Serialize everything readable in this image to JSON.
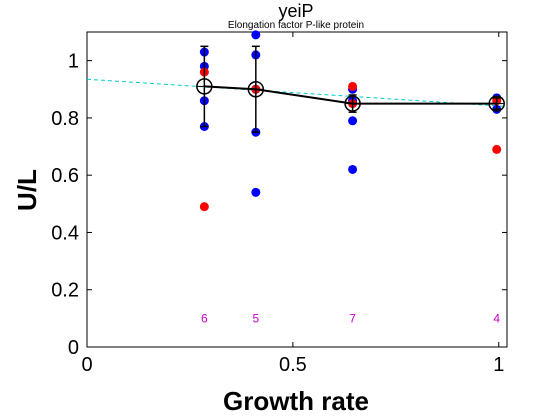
{
  "chart_data": {
    "type": "scatter",
    "title": "yeiP",
    "subtitle": "Elongation factor P-like protein",
    "xlabel": "Growth rate",
    "ylabel": "U/L",
    "xlim": [
      0,
      1.02
    ],
    "ylim": [
      0,
      1.1
    ],
    "xticks": [
      0,
      0.5,
      1
    ],
    "xtick_labels": [
      "0",
      "0.5",
      "1"
    ],
    "yticks": [
      0,
      0.2,
      0.4,
      0.6,
      0.8,
      1
    ],
    "ytick_labels": [
      "0",
      "0.2",
      "0.4",
      "0.6",
      "0.8",
      "1"
    ],
    "grid": false,
    "colors": {
      "blue_points": "#0000ff",
      "red_points": "#ff0000",
      "mean_line": "#000000",
      "fit_line": "#00cccc",
      "counts": "#cc00cc"
    },
    "blue_points": [
      {
        "x": 0.285,
        "y": 1.03
      },
      {
        "x": 0.285,
        "y": 0.98
      },
      {
        "x": 0.285,
        "y": 0.86
      },
      {
        "x": 0.285,
        "y": 0.77
      },
      {
        "x": 0.41,
        "y": 1.09
      },
      {
        "x": 0.41,
        "y": 1.02
      },
      {
        "x": 0.41,
        "y": 0.9
      },
      {
        "x": 0.41,
        "y": 0.75
      },
      {
        "x": 0.41,
        "y": 0.54
      },
      {
        "x": 0.645,
        "y": 0.9
      },
      {
        "x": 0.645,
        "y": 0.86
      },
      {
        "x": 0.645,
        "y": 0.79
      },
      {
        "x": 0.645,
        "y": 0.62
      },
      {
        "x": 0.995,
        "y": 0.87
      },
      {
        "x": 0.995,
        "y": 0.83
      }
    ],
    "red_points": [
      {
        "x": 0.285,
        "y": 0.96
      },
      {
        "x": 0.285,
        "y": 0.49
      },
      {
        "x": 0.41,
        "y": 0.9
      },
      {
        "x": 0.645,
        "y": 0.91
      },
      {
        "x": 0.645,
        "y": 0.85
      },
      {
        "x": 0.995,
        "y": 0.86
      },
      {
        "x": 0.995,
        "y": 0.69
      }
    ],
    "mean_series": {
      "x": [
        0.285,
        0.41,
        0.645,
        0.995
      ],
      "y": [
        0.91,
        0.9,
        0.85,
        0.85
      ],
      "err": [
        0.14,
        0.15,
        0.03,
        0.02
      ]
    },
    "fit_line": {
      "x": [
        0,
        1.02
      ],
      "y": [
        0.935,
        0.84
      ]
    },
    "counts": [
      {
        "x": 0.285,
        "label": "6"
      },
      {
        "x": 0.41,
        "label": "5"
      },
      {
        "x": 0.645,
        "label": "7"
      },
      {
        "x": 0.995,
        "label": "4"
      }
    ],
    "counts_y": 0.1
  }
}
